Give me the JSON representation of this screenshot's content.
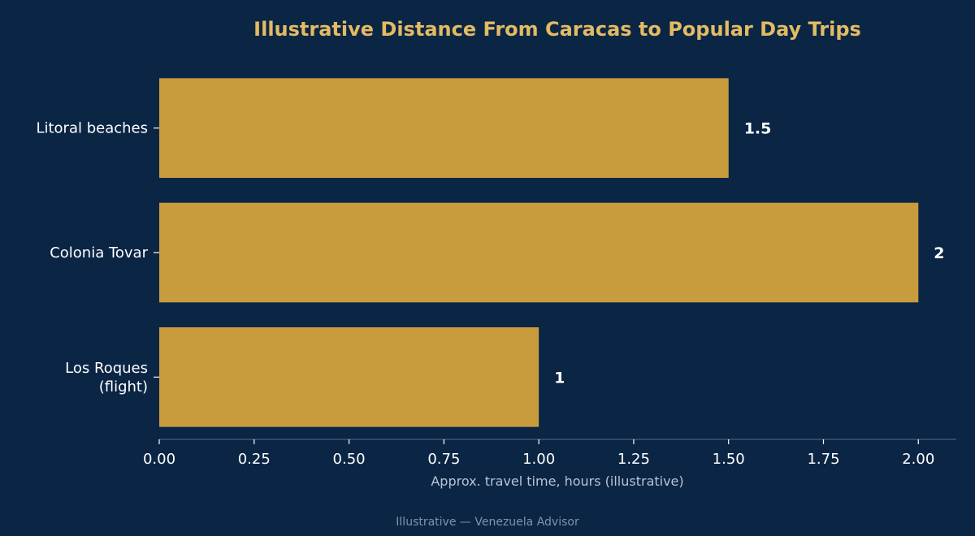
{
  "chart_data": {
    "type": "bar",
    "orientation": "horizontal",
    "title": "Illustrative Distance From Caracas to Popular Day Trips",
    "xlabel": "Approx. travel time, hours (illustrative)",
    "ylabel": "",
    "categories": [
      [
        "Litoral beaches"
      ],
      [
        "Colonia Tovar"
      ],
      [
        "Los Roques",
        "(flight)"
      ]
    ],
    "values": [
      1.5,
      2,
      1
    ],
    "value_labels": [
      "1.5",
      "2",
      "1"
    ],
    "xlim": [
      0,
      2.1
    ],
    "xticks": [
      0,
      0.25,
      0.5,
      0.75,
      1.0,
      1.25,
      1.5,
      1.75,
      2.0
    ],
    "xtick_labels": [
      "0.00",
      "0.25",
      "0.50",
      "0.75",
      "1.00",
      "1.25",
      "1.50",
      "1.75",
      "2.00"
    ],
    "grid": false,
    "colors": {
      "background": "#0b2545",
      "bar": "#c89b3c",
      "title": "#e2bb63",
      "text": "#ffffff",
      "axis": "#3d5576",
      "xlabel": "#b7c4d6",
      "footer": "#7f93ad"
    }
  },
  "footer": "Illustrative — Venezuela Advisor"
}
